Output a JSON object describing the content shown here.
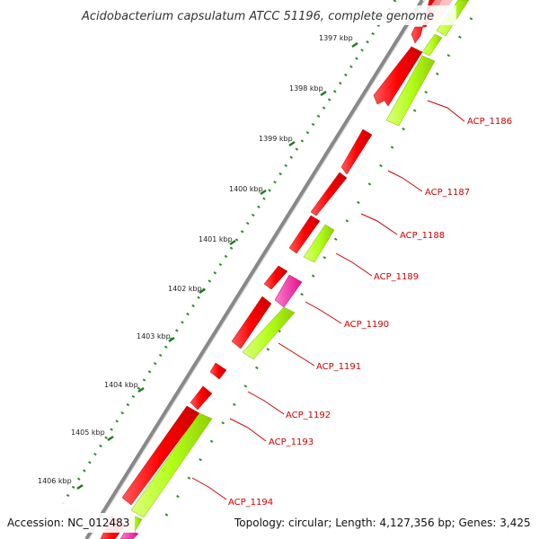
{
  "title": "Acidobacterium capsulatum ATCC 51196, complete genome",
  "accession": "Accession: NC_012483",
  "topology": "Topology: circular; Length: 4,127,356 bp; Genes: 3,425",
  "ticks": [
    "1397 kbp",
    "1398 kbp",
    "1399 kbp",
    "1400 kbp",
    "1401 kbp",
    "1402 kbp",
    "1403 kbp",
    "1404 kbp",
    "1405 kbp",
    "1406 kbp"
  ],
  "genes": [
    "ACP_1186",
    "ACP_1187",
    "ACP_1188",
    "ACP_1189",
    "ACP_1190",
    "ACP_1191",
    "ACP_1192",
    "ACP_1193",
    "ACP_1194"
  ],
  "colors": {
    "cds_forward": "#ff0000",
    "cds_reverse": "#b3ff1a",
    "rna": "#ff1aa0",
    "backbone": "#8a8a8a",
    "tick_dots": "#2e8b2e",
    "label": "#cc0000"
  }
}
